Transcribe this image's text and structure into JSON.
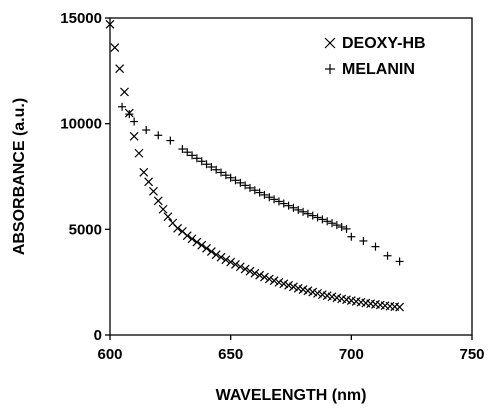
{
  "chart_data": {
    "type": "scatter",
    "title": "",
    "xlabel": "WAVELENGTH (nm)",
    "ylabel": "ABSORBANCE (a.u.)",
    "xlim": [
      600,
      750
    ],
    "ylim": [
      0,
      15000
    ],
    "xticks": [
      "600",
      "650",
      "700",
      "750"
    ],
    "yticks": [
      "0",
      "5000",
      "10000",
      "15000"
    ],
    "grid": false,
    "legend_position": "top-right",
    "series": [
      {
        "name": "DEOXY-HB",
        "marker": "x",
        "x": [
          600,
          602,
          604,
          606,
          608,
          610,
          612,
          614,
          616,
          618,
          620,
          622,
          624,
          626,
          628,
          630,
          632,
          634,
          636,
          638,
          640,
          642,
          644,
          646,
          648,
          650,
          652,
          654,
          656,
          658,
          660,
          662,
          664,
          666,
          668,
          670,
          672,
          674,
          676,
          678,
          680,
          682,
          684,
          686,
          688,
          690,
          692,
          694,
          696,
          698,
          700,
          702,
          704,
          706,
          708,
          710,
          712,
          714,
          716,
          718,
          720
        ],
        "y": [
          14700,
          13600,
          12600,
          11500,
          10500,
          9400,
          8600,
          7700,
          7250,
          6800,
          6350,
          5950,
          5600,
          5300,
          5050,
          4900,
          4700,
          4550,
          4400,
          4250,
          4100,
          3950,
          3800,
          3680,
          3560,
          3450,
          3340,
          3230,
          3120,
          3020,
          2920,
          2830,
          2740,
          2650,
          2570,
          2490,
          2420,
          2350,
          2280,
          2210,
          2150,
          2090,
          2030,
          1970,
          1910,
          1860,
          1810,
          1760,
          1710,
          1670,
          1630,
          1590,
          1550,
          1510,
          1480,
          1450,
          1420,
          1390,
          1360,
          1340,
          1320
        ]
      },
      {
        "name": "MELANIN",
        "marker": "+",
        "x": [
          605,
          608,
          610,
          615,
          620,
          625,
          630,
          632,
          634,
          636,
          638,
          640,
          642,
          644,
          646,
          648,
          650,
          652,
          654,
          656,
          658,
          660,
          662,
          664,
          666,
          668,
          670,
          672,
          674,
          676,
          678,
          680,
          682,
          684,
          686,
          688,
          690,
          692,
          694,
          696,
          698,
          700,
          705,
          710,
          715,
          720
        ],
        "y": [
          10800,
          10450,
          10100,
          9700,
          9450,
          9200,
          8800,
          8650,
          8500,
          8360,
          8220,
          8080,
          7950,
          7820,
          7690,
          7560,
          7440,
          7320,
          7200,
          7080,
          6960,
          6850,
          6740,
          6630,
          6520,
          6420,
          6320,
          6220,
          6120,
          6020,
          5920,
          5830,
          5740,
          5650,
          5560,
          5470,
          5380,
          5290,
          5200,
          5110,
          5020,
          4650,
          4450,
          4180,
          3750,
          3480
        ]
      }
    ]
  }
}
